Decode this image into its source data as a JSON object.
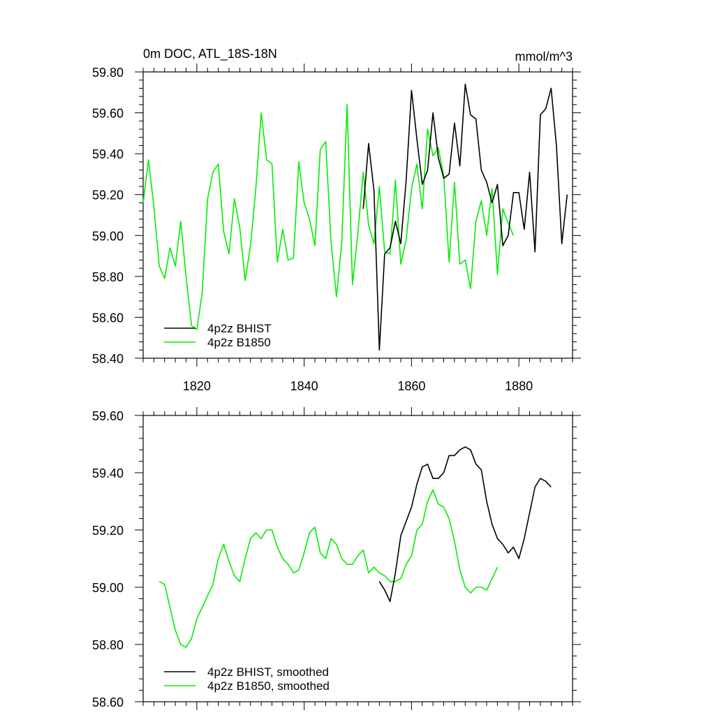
{
  "chart_data": [
    {
      "type": "line",
      "title": "0m DOC, ATL_18S-18N",
      "units": "mmol/m^3",
      "xlabel": "",
      "ylabel": "",
      "xlim": [
        1810,
        1890
      ],
      "ylim": [
        58.4,
        59.8
      ],
      "xticks": [
        1820,
        1840,
        1860,
        1880
      ],
      "xtick_labels": [
        "1820",
        "1840",
        "1860",
        "1880"
      ],
      "yticks": [
        58.4,
        58.6,
        58.8,
        59.0,
        59.2,
        59.4,
        59.6,
        59.8
      ],
      "ytick_labels": [
        "58.40",
        "58.60",
        "58.80",
        "59.00",
        "59.20",
        "59.40",
        "59.60",
        "59.80"
      ],
      "legend_position": "bottom-left",
      "series": [
        {
          "name": "4p2z BHIST",
          "color": "#000000",
          "x": [
            1851,
            1852,
            1853,
            1854,
            1855,
            1856,
            1857,
            1858,
            1859,
            1860,
            1861,
            1862,
            1863,
            1864,
            1865,
            1866,
            1867,
            1868,
            1869,
            1870,
            1871,
            1872,
            1873,
            1874,
            1875,
            1876,
            1877,
            1878,
            1879,
            1880,
            1881,
            1882,
            1883,
            1884,
            1885,
            1886,
            1887,
            1888,
            1889
          ],
          "y": [
            59.13,
            59.45,
            59.22,
            58.44,
            58.91,
            58.94,
            59.07,
            58.96,
            59.27,
            59.71,
            59.47,
            59.25,
            59.32,
            59.6,
            59.38,
            59.28,
            59.3,
            59.55,
            59.34,
            59.74,
            59.59,
            59.57,
            59.32,
            59.26,
            59.16,
            59.25,
            58.95,
            59.0,
            59.21,
            59.21,
            59.03,
            59.31,
            58.92,
            59.59,
            59.62,
            59.72,
            59.44,
            58.96,
            59.2
          ]
        },
        {
          "name": "4p2z B1850",
          "color": "#00ee00",
          "x": [
            1810,
            1811,
            1812,
            1813,
            1814,
            1815,
            1816,
            1817,
            1818,
            1819,
            1820,
            1821,
            1822,
            1823,
            1824,
            1825,
            1826,
            1827,
            1828,
            1829,
            1830,
            1831,
            1832,
            1833,
            1834,
            1835,
            1836,
            1837,
            1838,
            1839,
            1840,
            1841,
            1842,
            1843,
            1844,
            1845,
            1846,
            1847,
            1848,
            1849,
            1850,
            1851,
            1852,
            1853,
            1854,
            1855,
            1856,
            1857,
            1858,
            1859,
            1860,
            1861,
            1862,
            1863,
            1864,
            1865,
            1866,
            1867,
            1868,
            1869,
            1870,
            1871,
            1872,
            1873,
            1874,
            1875,
            1876,
            1877,
            1878,
            1879
          ],
          "y": [
            59.16,
            59.37,
            59.14,
            58.85,
            58.79,
            58.94,
            58.85,
            59.07,
            58.8,
            58.56,
            58.54,
            58.72,
            59.18,
            59.31,
            59.35,
            59.02,
            58.91,
            59.18,
            59.04,
            58.78,
            58.95,
            59.23,
            59.6,
            59.37,
            59.35,
            58.87,
            59.03,
            58.88,
            58.89,
            59.36,
            59.16,
            59.08,
            58.95,
            59.42,
            59.46,
            58.97,
            58.7,
            58.96,
            59.64,
            58.76,
            59.01,
            59.31,
            59.05,
            58.96,
            59.24,
            58.92,
            58.91,
            59.27,
            58.86,
            58.98,
            59.23,
            59.35,
            59.13,
            59.52,
            59.39,
            59.43,
            59.29,
            58.87,
            59.26,
            58.86,
            58.88,
            58.74,
            59.07,
            59.17,
            59.0,
            59.23,
            58.81,
            59.13,
            59.06,
            59.0
          ]
        }
      ]
    },
    {
      "type": "line",
      "title": "",
      "xlabel": "",
      "ylabel": "",
      "xlim": [
        1810,
        1890
      ],
      "ylim": [
        58.6,
        59.6
      ],
      "xticks": [
        1820,
        1840,
        1860,
        1880
      ],
      "yticks": [
        58.6,
        58.8,
        59.0,
        59.2,
        59.4,
        59.6
      ],
      "ytick_labels": [
        "58.60",
        "58.80",
        "59.00",
        "59.20",
        "59.40",
        "59.60"
      ],
      "legend_position": "bottom-left",
      "series": [
        {
          "name": "4p2z BHIST, smoothed",
          "color": "#000000",
          "x": [
            1854,
            1855,
            1856,
            1857,
            1858,
            1859,
            1860,
            1861,
            1862,
            1863,
            1864,
            1865,
            1866,
            1867,
            1868,
            1869,
            1870,
            1871,
            1872,
            1873,
            1874,
            1875,
            1876,
            1877,
            1878,
            1879,
            1880,
            1881,
            1882,
            1883,
            1884,
            1885,
            1886
          ],
          "y": [
            59.02,
            58.99,
            58.95,
            59.05,
            59.18,
            59.23,
            59.28,
            59.36,
            59.42,
            59.43,
            59.38,
            59.38,
            59.4,
            59.46,
            59.46,
            59.48,
            59.49,
            59.48,
            59.43,
            59.41,
            59.3,
            59.22,
            59.17,
            59.15,
            59.12,
            59.14,
            59.1,
            59.17,
            59.26,
            59.35,
            59.38,
            59.37,
            59.35
          ]
        },
        {
          "name": "4p2z B1850, smoothed",
          "color": "#00ee00",
          "x": [
            1813,
            1814,
            1815,
            1816,
            1817,
            1818,
            1819,
            1820,
            1821,
            1822,
            1823,
            1824,
            1825,
            1826,
            1827,
            1828,
            1829,
            1830,
            1831,
            1832,
            1833,
            1834,
            1835,
            1836,
            1837,
            1838,
            1839,
            1840,
            1841,
            1842,
            1843,
            1844,
            1845,
            1846,
            1847,
            1848,
            1849,
            1850,
            1851,
            1852,
            1853,
            1854,
            1855,
            1856,
            1857,
            1858,
            1859,
            1860,
            1861,
            1862,
            1863,
            1864,
            1865,
            1866,
            1867,
            1868,
            1869,
            1870,
            1871,
            1872,
            1873,
            1874,
            1875,
            1876
          ],
          "y": [
            59.02,
            59.01,
            58.93,
            58.85,
            58.8,
            58.79,
            58.82,
            58.89,
            58.93,
            58.97,
            59.01,
            59.1,
            59.15,
            59.09,
            59.04,
            59.02,
            59.1,
            59.17,
            59.19,
            59.17,
            59.2,
            59.2,
            59.14,
            59.1,
            59.08,
            59.05,
            59.06,
            59.12,
            59.19,
            59.21,
            59.12,
            59.1,
            59.17,
            59.15,
            59.1,
            59.08,
            59.08,
            59.11,
            59.13,
            59.05,
            59.07,
            59.05,
            59.04,
            59.02,
            59.02,
            59.03,
            59.08,
            59.11,
            59.2,
            59.22,
            59.3,
            59.34,
            59.29,
            59.28,
            59.24,
            59.16,
            59.06,
            59.0,
            58.98,
            59.0,
            59.0,
            58.99,
            59.03,
            59.07
          ]
        }
      ]
    }
  ]
}
